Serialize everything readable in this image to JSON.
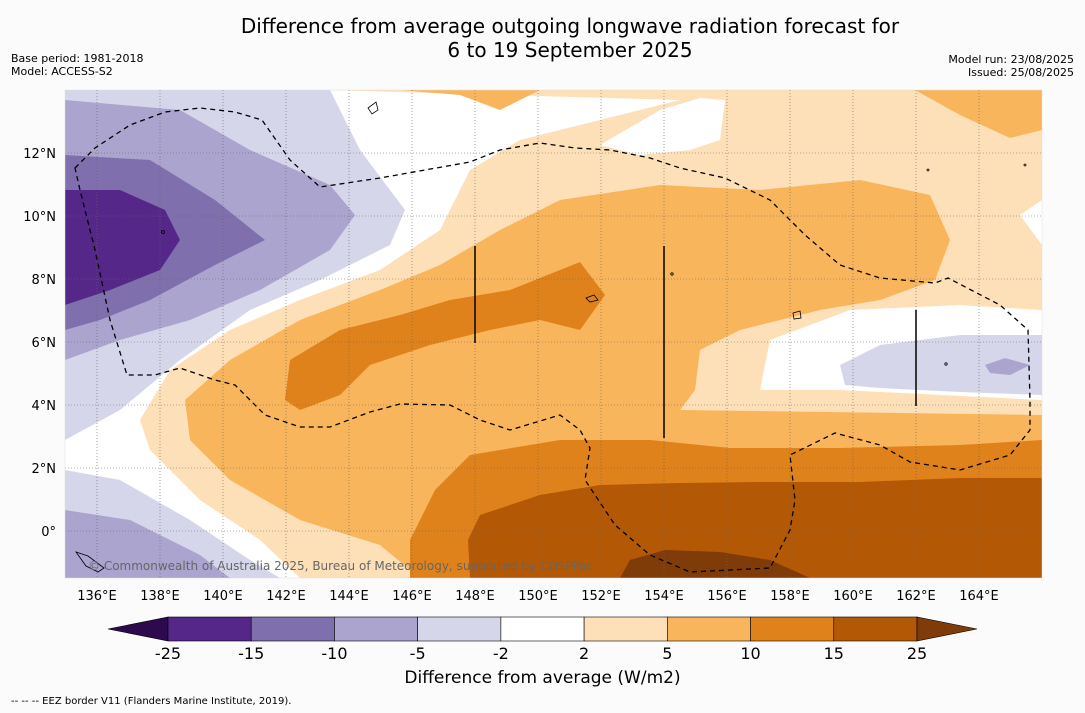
{
  "title_line1": "Difference from average outgoing longwave radiation forecast for",
  "title_line2": "6 to 19 September 2025",
  "base_period": "Base period: 1981-2018",
  "model": "Model: ACCESS-S2",
  "model_run": "Model run: 23/08/2025",
  "issued": "Issued: 25/08/2025",
  "copyright": "© Commonwealth of Australia 2025, Bureau of Meteorology, supported by COSPPac",
  "colorbar_title": "Difference from average (W/m2)",
  "footnote": "--  --  -- EEZ border V11 (Flanders Marine Institute, 2019).",
  "lon_labels": [
    "136°E",
    "138°E",
    "140°E",
    "142°E",
    "144°E",
    "146°E",
    "148°E",
    "150°E",
    "152°E",
    "154°E",
    "156°E",
    "158°E",
    "160°E",
    "162°E",
    "164°E"
  ],
  "lat_labels": [
    "12°N",
    "10°N",
    "8°N",
    "6°N",
    "4°N",
    "2°N",
    "0°"
  ],
  "colorbar": {
    "levels": [
      "-25",
      "-15",
      "-10",
      "-5",
      "-2",
      "2",
      "5",
      "10",
      "15",
      "25"
    ],
    "colors": [
      "#542789",
      "#7f6fac",
      "#aba4cf",
      "#d6d6ea",
      "#ffffff",
      "#fde0b7",
      "#f9b55c",
      "#e0821b",
      "#b35805"
    ],
    "extend_low": "#2d0a4e",
    "extend_high": "#7f3b08"
  },
  "legend": {
    "eez_label": "EEZ border V11"
  }
}
